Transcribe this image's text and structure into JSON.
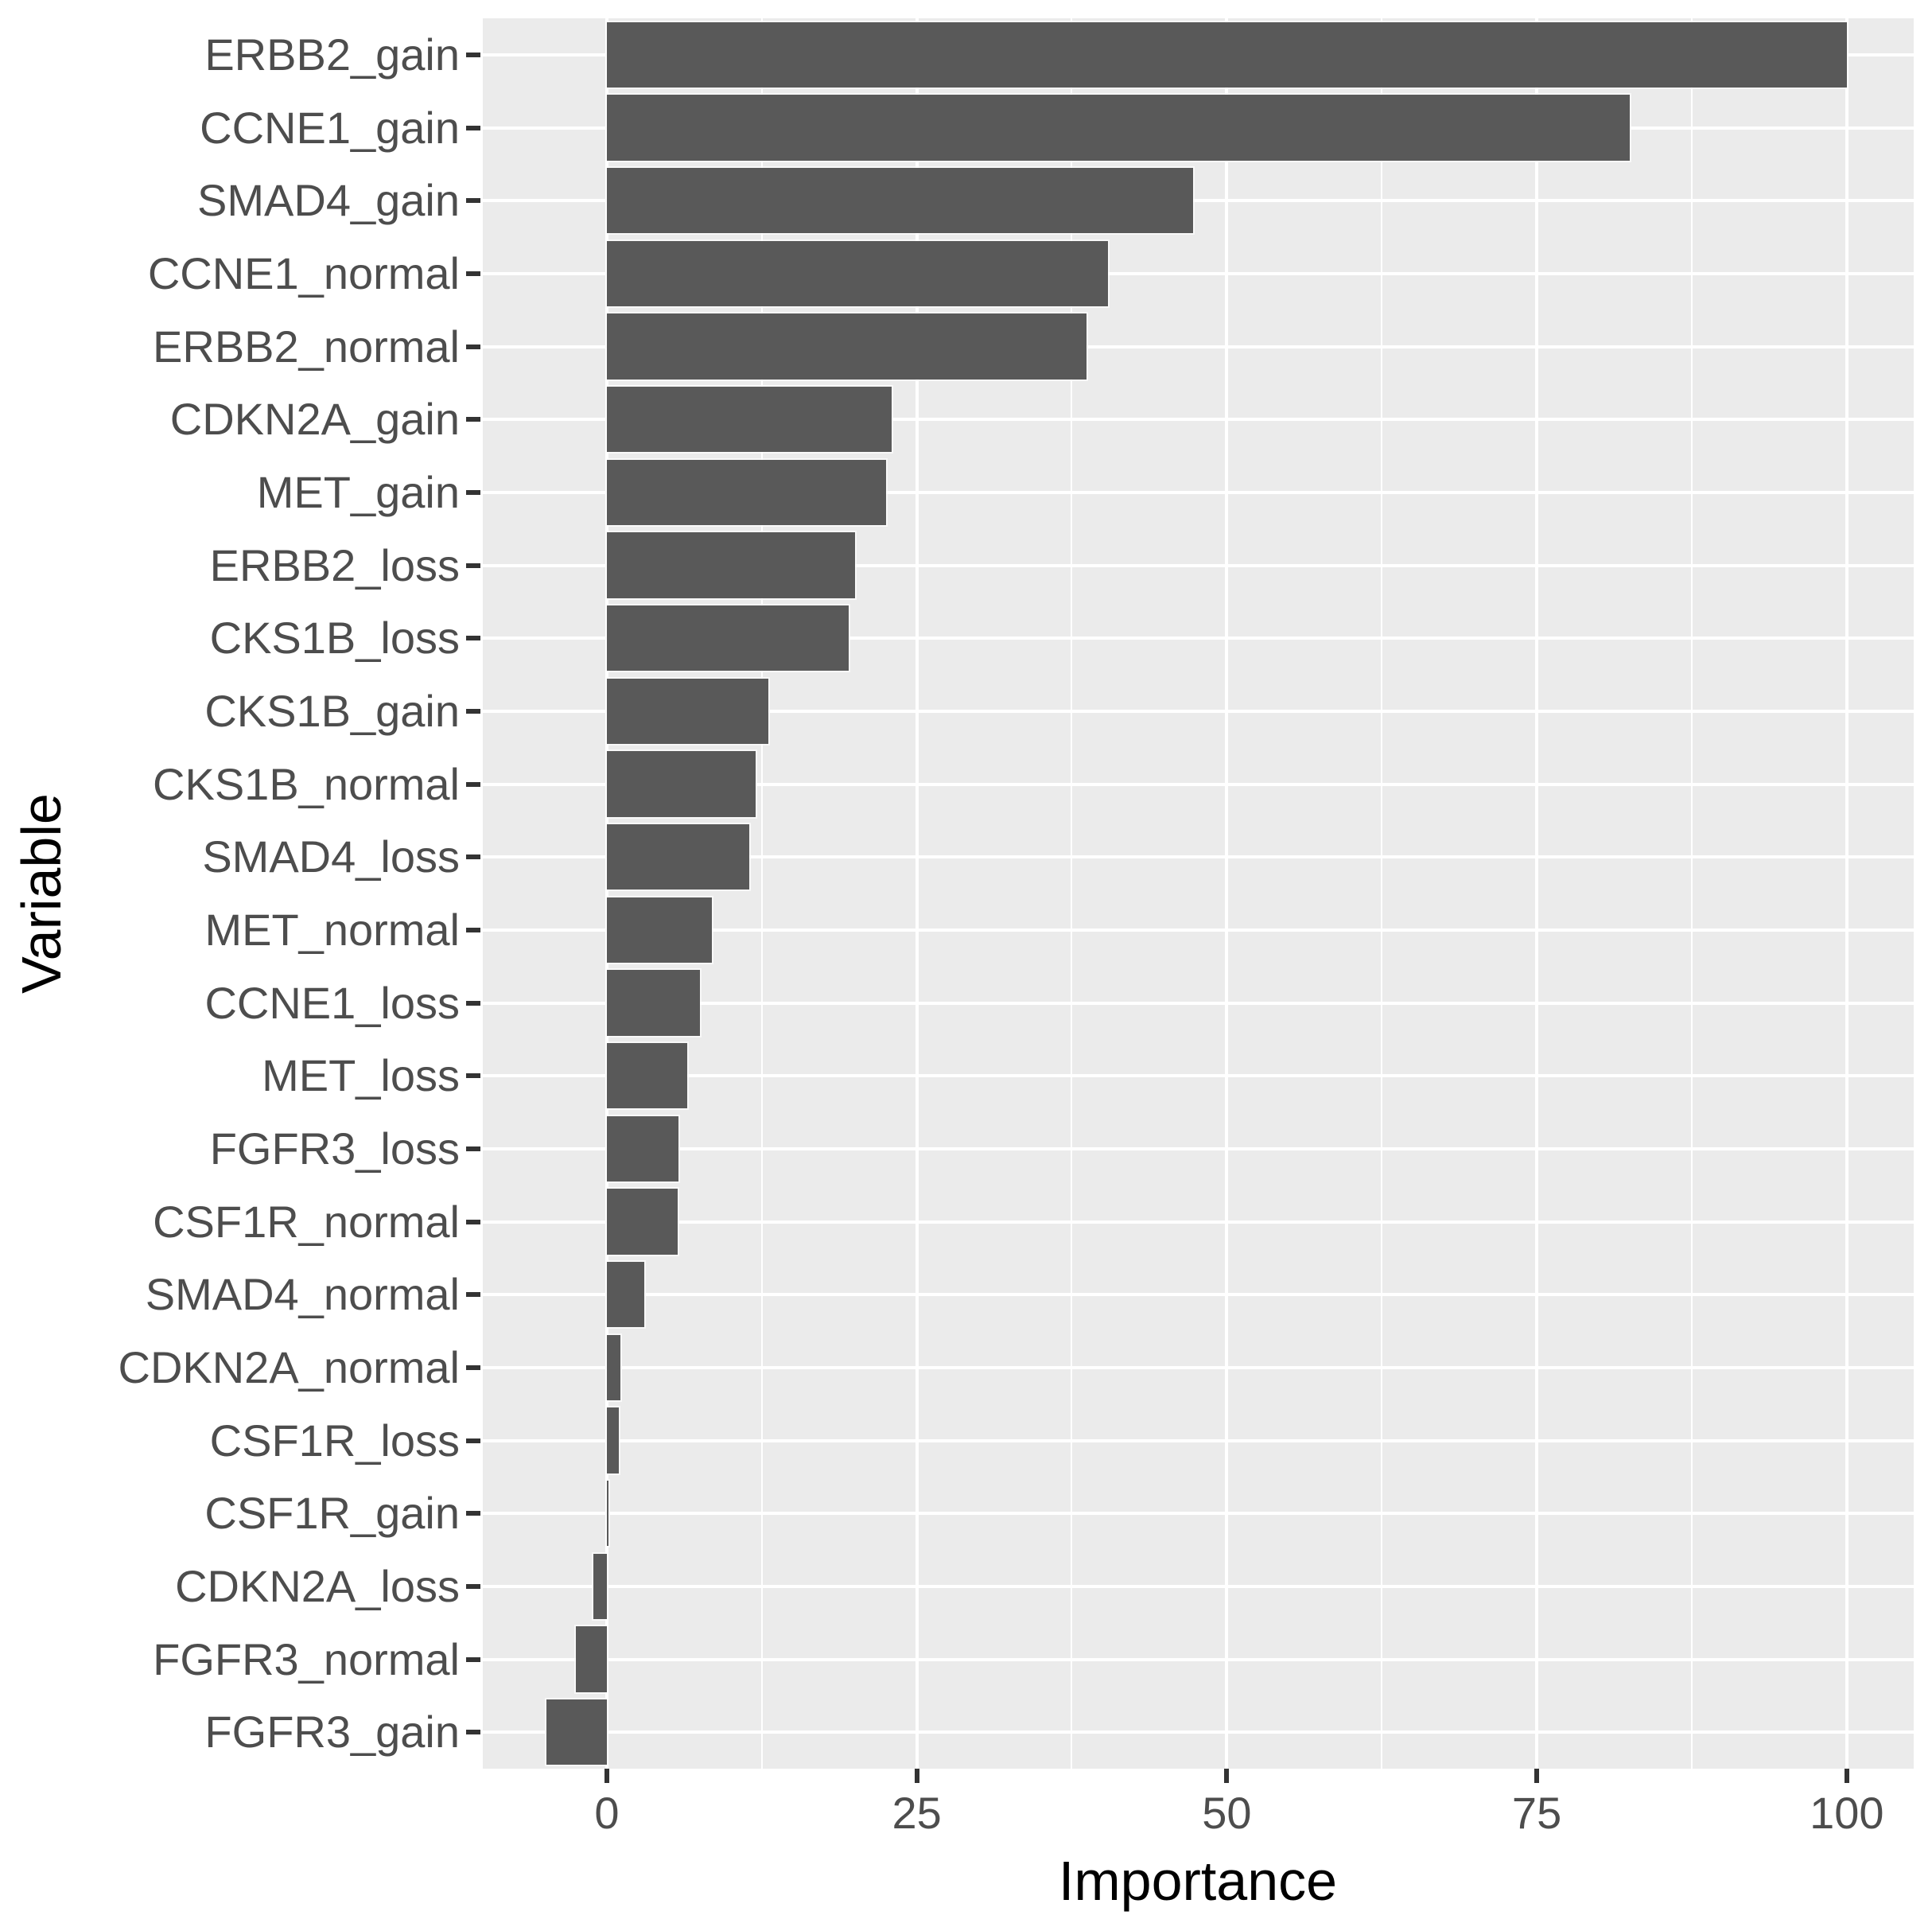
{
  "chart_data": {
    "type": "bar",
    "orientation": "horizontal",
    "title": "",
    "xlabel": "Importance",
    "ylabel": "Variable",
    "categories": [
      "ERBB2_gain",
      "CCNE1_gain",
      "SMAD4_gain",
      "CCNE1_normal",
      "ERBB2_normal",
      "CDKN2A_gain",
      "MET_gain",
      "ERBB2_loss",
      "CKS1B_loss",
      "CKS1B_gain",
      "CKS1B_normal",
      "SMAD4_loss",
      "MET_normal",
      "CCNE1_loss",
      "MET_loss",
      "FGFR3_loss",
      "CSF1R_normal",
      "SMAD4_normal",
      "CDKN2A_normal",
      "CSF1R_loss",
      "CSF1R_gain",
      "CDKN2A_loss",
      "FGFR3_normal",
      "FGFR3_gain"
    ],
    "values": [
      100,
      82.5,
      47.3,
      40.4,
      38.7,
      23,
      22.5,
      20,
      19.5,
      13,
      12,
      11.5,
      8.5,
      7.5,
      6.5,
      5.8,
      5.7,
      3,
      1.1,
      1,
      0.15,
      -1.1,
      -2.5,
      -4.9
    ],
    "xlim": [
      -10,
      105.4
    ],
    "x_ticks": [
      0,
      25,
      50,
      75,
      100
    ],
    "x_tick_labels": [
      "0",
      "25",
      "50",
      "75",
      "100"
    ],
    "x_minor_ticks": [
      12.5,
      37.5,
      62.5,
      87.5
    ],
    "bar_width_fraction": 0.9,
    "legend": "none",
    "grid": true,
    "colors": {
      "bar": "#595959",
      "panel_background": "#EBEBEB",
      "gridline": "#FFFFFF",
      "axis_text": "#4D4D4D",
      "axis_title": "#000000",
      "tick_mark": "#333333",
      "plot_background": "#FFFFFF"
    }
  }
}
